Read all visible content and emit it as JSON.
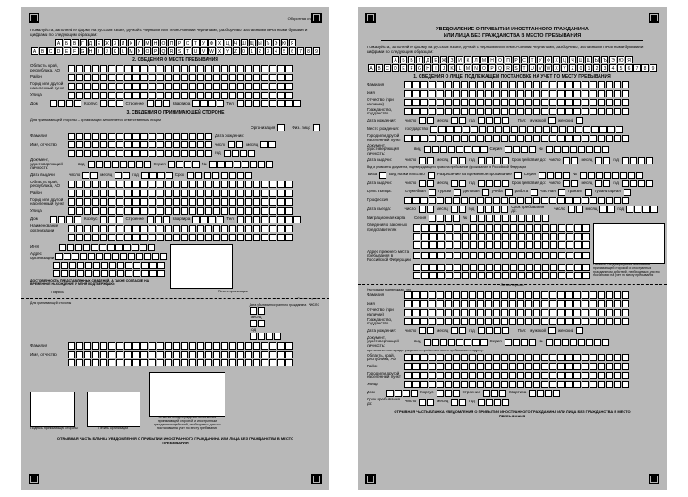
{
  "alphabet_row1": [
    "А",
    "Б",
    "В",
    "Г",
    "Д",
    "Е",
    "Ж",
    "З",
    "И",
    "К",
    "Л",
    "М",
    "Н",
    "О",
    "П",
    "Р",
    "С",
    "Т",
    "У",
    "Ф",
    "Х",
    "Ц",
    "Ч",
    "Ш",
    "Щ",
    "Ы",
    "Ъ",
    "Э",
    "Ю",
    "Я"
  ],
  "alphabet_row2": [
    "A",
    "B",
    "C",
    "D",
    "E",
    "F",
    "G",
    "H",
    "I",
    "J",
    "K",
    "L",
    "M",
    "N",
    "O",
    "P",
    "Q",
    "R",
    "S",
    "T",
    "U",
    "V",
    "W",
    "X",
    "Y",
    "Z",
    "0",
    "1",
    "2",
    "3",
    "4",
    "5",
    "6",
    "7",
    "8",
    "9"
  ],
  "left": {
    "back_label": "Оборотная сторона",
    "instruction": "Пожалуйста, заполняйте форму на русском языке, ручкой с черными или темно-синими чернилами, разборчиво, заглавными печатными буквами и цифрами по следующим образцам:",
    "section2": "2. СВЕДЕНИЯ О МЕСТЕ ПРЕБЫВАНИЯ",
    "section3": "3. СВЕДЕНИЯ О ПРИНИМАЮЩЕЙ СТОРОНЕ",
    "fields": {
      "region": "Область, край, республика, АО",
      "district": "Район",
      "city": "Город или другой населенный пункт",
      "street": "Улица",
      "house": "Дом",
      "corpus": "Корпус",
      "building": "Строение",
      "flat": "Квартира",
      "tel": "Тел.",
      "host_instr": "Для принимающей стороны – организации заполняется ответственным лицом",
      "org": "Организация",
      "fiz": "Физ. лицо",
      "surname": "Фамилия",
      "name": "Имя, отчество",
      "birthdate": "Дата рождения:",
      "day": "число",
      "month": "месяц",
      "year": "год",
      "doc": "Документ, удостоверяющий личность:",
      "kind": "вид",
      "series": "Серия",
      "no": "№",
      "issued": "Дата выдачи:",
      "valid": "Срок",
      "org_name": "Наименование организации",
      "inn": "ИНН",
      "org_addr": "Адрес организации",
      "confirm": "ДОСТОВЕРНОСТЬ ПРЕДСТАВЛЕННЫХ СВЕДЕНИЙ, А ТАКЖЕ СОГЛАСИЕ НА ВРЕМЕННОЕ НАХОЖДЕНИЕ У МЕНЯ ПОДТВЕРЖДАЮ:",
      "sig": "Подпись",
      "seal": "Печать организации",
      "tear": "Линия отрыва",
      "for_host": "Для принимающей стороны",
      "departure": "Дата убытия иностранного гражданина",
      "host_sig": "Подпись принимающей стороны",
      "org_seal": "Печать организации",
      "mark": "Отметка о подтверждении выполнения принимающей стороной и иностранным гражданином действий, необходимых для его постановки на учет по месту пребывания",
      "footer": "ОТРЫВНАЯ ЧАСТЬ БЛАНКА УВЕДОМЛЕНИЯ О ПРИБЫТИИ ИНОСТРАННОГО ГРАЖДАНИНА ИЛИ ЛИЦА БЕЗ ГРАЖДАНСТВА В МЕСТО ПРЕБЫВАНИЯ"
    }
  },
  "right": {
    "title1": "УВЕДОМЛЕНИЕ О ПРИБЫТИИ ИНОСТРАННОГО ГРАЖДАНИНА",
    "title2": "ИЛИ ЛИЦА БЕЗ ГРАЖДАНСТВА В МЕСТО ПРЕБЫВАНИЯ",
    "instruction": "Пожалуйста, заполняйте форму на русском языке, ручкой с черными или темно-синими чернилами, разборчиво, заглавными печатными буквами и цифрами по следующим образцам:",
    "section1": "1. СВЕДЕНИЯ О ЛИЦЕ, ПОДЛЕЖАЩЕМ ПОСТАНОВКЕ НА УЧЕТ ПО МЕСТУ ПРЕБЫВАНИЯ",
    "fields": {
      "surname": "Фамилия",
      "name": "Имя",
      "patronym": "Отчество (при наличии)",
      "citizenship": "Гражданство, подданство",
      "birthdate": "Дата рождения:",
      "day": "число",
      "month": "месяц",
      "year": "год",
      "sex": "Пол:",
      "m": "мужской",
      "f": "женский",
      "birthplace": "Место рождения:",
      "state": "государство",
      "city": "Город или другой населенный пункт",
      "doc": "Документ, удостоверяющий личность:",
      "kind": "вид",
      "series": "Серия",
      "no": "№",
      "issued": "Дата выдачи:",
      "valid_to": "Срок действия до:",
      "right_doc": "Вид и реквизиты документа, подтверждающего право на пребывание (проживание) в Российской Федерации",
      "visa": "Виза",
      "residence": "Вид на жительство",
      "temp_res": "Разрешение на временное проживание",
      "purpose": "Цель въезда:",
      "service": "служебная",
      "tourism": "туризм",
      "business": "деловая",
      "study": "учеба",
      "work": "работа",
      "private": "частная",
      "transit": "транзит",
      "humanitarian": "гуманитарная",
      "profession": "Профессия",
      "arrival": "Дата въезда:",
      "stay_until": "Срок пребывания до:",
      "migration_card": "Миграционная карта",
      "rep_info": "Сведения о законных представителях",
      "prev_addr": "Адрес прежнего места пребывания в Российской Федерации",
      "mark_note": "Отметка о подтверждении выполнения принимающей стороной и иностранным гражданином действий, необходимых для его постановки на учет по месту пребывания",
      "tear": "Линия отрыва",
      "confirm": "Настоящим подтверждаю, что",
      "region": "Область, край, республика, АО",
      "district": "Район",
      "street": "Улица",
      "house": "Дом",
      "corpus": "Корпус",
      "building": "Строение",
      "flat": "Квартира",
      "declared": "в установленном порядке уведомил о прибытии в место пребывания по адресу:",
      "footer": "ОТРЫВНАЯ ЧАСТЬ БЛАНКА УВЕДОМЛЕНИЯ О ПРИБЫТИИ ИНОСТРАННОГО ГРАЖДАНИНА ИЛИ ЛИЦА БЕЗ ГРАЖДАНСТВА В МЕСТО ПРЕБЫВАНИЯ"
    }
  }
}
